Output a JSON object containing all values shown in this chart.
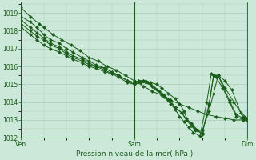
{
  "background_color": "#cce8d8",
  "grid_color": "#aaccbb",
  "line_color": "#1a5c1a",
  "marker_color": "#1a5c1a",
  "title": "Pression niveau de la mer( hPa )",
  "ylim": [
    1012,
    1019.6
  ],
  "yticks": [
    1012,
    1013,
    1014,
    1015,
    1016,
    1017,
    1018,
    1019
  ],
  "xtick_labels": [
    "Ven",
    "Sam",
    "Dim"
  ],
  "xtick_positions": [
    0,
    0.5,
    1.0
  ],
  "series": [
    {
      "x": [
        0.0,
        0.04,
        0.08,
        0.1,
        0.14,
        0.18,
        0.22,
        0.26,
        0.3,
        0.34,
        0.38,
        0.42,
        0.46,
        0.5,
        0.54,
        0.58,
        0.62,
        0.66,
        0.7,
        0.74,
        0.78,
        0.82,
        0.86,
        0.9,
        0.94,
        0.98,
        1.0
      ],
      "y": [
        1019.3,
        1018.8,
        1018.4,
        1018.2,
        1017.8,
        1017.5,
        1017.2,
        1016.9,
        1016.5,
        1016.3,
        1016.0,
        1015.8,
        1015.5,
        1015.2,
        1014.9,
        1014.6,
        1014.4,
        1014.1,
        1013.9,
        1013.7,
        1013.5,
        1013.3,
        1013.2,
        1013.1,
        1013.0,
        1013.0,
        1013.0
      ]
    },
    {
      "x": [
        0.0,
        0.04,
        0.07,
        0.1,
        0.13,
        0.17,
        0.2,
        0.23,
        0.27,
        0.3,
        0.33,
        0.37,
        0.4,
        0.43,
        0.47,
        0.5,
        0.53,
        0.55,
        0.57,
        0.6,
        0.62,
        0.65,
        0.68,
        0.7,
        0.72,
        0.73,
        0.75,
        0.77,
        0.8,
        0.83,
        0.85,
        0.87,
        0.9,
        0.93,
        0.97,
        1.0
      ],
      "y": [
        1018.8,
        1018.5,
        1018.2,
        1017.8,
        1017.5,
        1017.3,
        1017.0,
        1016.8,
        1016.5,
        1016.3,
        1016.1,
        1015.9,
        1015.7,
        1015.5,
        1015.2,
        1015.0,
        1015.1,
        1015.2,
        1015.1,
        1015.0,
        1014.8,
        1014.5,
        1014.2,
        1013.9,
        1013.5,
        1013.1,
        1012.8,
        1012.5,
        1012.4,
        1013.5,
        1014.5,
        1015.5,
        1015.2,
        1014.7,
        1013.4,
        1013.1
      ]
    },
    {
      "x": [
        0.0,
        0.04,
        0.07,
        0.1,
        0.13,
        0.17,
        0.2,
        0.23,
        0.27,
        0.3,
        0.33,
        0.37,
        0.4,
        0.43,
        0.47,
        0.5,
        0.52,
        0.54,
        0.56,
        0.59,
        0.62,
        0.65,
        0.68,
        0.71,
        0.73,
        0.75,
        0.77,
        0.8,
        0.83,
        0.85,
        0.87,
        0.9,
        0.94,
        0.98,
        1.0
      ],
      "y": [
        1018.6,
        1018.2,
        1017.9,
        1017.6,
        1017.3,
        1017.1,
        1016.8,
        1016.6,
        1016.4,
        1016.2,
        1016.0,
        1015.9,
        1015.7,
        1015.5,
        1015.2,
        1015.1,
        1015.2,
        1015.2,
        1015.1,
        1014.8,
        1014.5,
        1014.1,
        1013.7,
        1013.4,
        1013.0,
        1012.7,
        1012.4,
        1012.3,
        1013.8,
        1015.5,
        1015.5,
        1014.8,
        1014.0,
        1013.2,
        1013.1
      ]
    },
    {
      "x": [
        0.0,
        0.04,
        0.07,
        0.1,
        0.13,
        0.17,
        0.2,
        0.23,
        0.27,
        0.3,
        0.33,
        0.37,
        0.4,
        0.43,
        0.47,
        0.5,
        0.52,
        0.54,
        0.57,
        0.6,
        0.63,
        0.66,
        0.68,
        0.71,
        0.73,
        0.76,
        0.78,
        0.8,
        0.83,
        0.85,
        0.87,
        0.89,
        0.92,
        0.95,
        0.98,
        1.0
      ],
      "y": [
        1018.4,
        1018.0,
        1017.7,
        1017.5,
        1017.2,
        1017.0,
        1016.7,
        1016.5,
        1016.3,
        1016.1,
        1016.0,
        1015.8,
        1015.6,
        1015.5,
        1015.2,
        1015.1,
        1015.2,
        1015.2,
        1015.0,
        1014.7,
        1014.4,
        1014.1,
        1013.7,
        1013.4,
        1013.0,
        1012.7,
        1012.4,
        1012.2,
        1013.9,
        1015.5,
        1015.5,
        1014.9,
        1014.1,
        1013.3,
        1013.1,
        1013.0
      ]
    },
    {
      "x": [
        0.0,
        0.04,
        0.07,
        0.1,
        0.13,
        0.17,
        0.2,
        0.23,
        0.27,
        0.3,
        0.33,
        0.37,
        0.4,
        0.43,
        0.47,
        0.5,
        0.53,
        0.55,
        0.58,
        0.61,
        0.63,
        0.66,
        0.68,
        0.7,
        0.72,
        0.74,
        0.76,
        0.79,
        0.82,
        0.84,
        0.86,
        0.89,
        0.92,
        0.95,
        0.98,
        1.0
      ],
      "y": [
        1018.2,
        1017.8,
        1017.5,
        1017.2,
        1017.0,
        1016.8,
        1016.6,
        1016.4,
        1016.2,
        1016.0,
        1015.9,
        1015.7,
        1015.6,
        1015.4,
        1015.1,
        1015.0,
        1015.1,
        1015.1,
        1014.9,
        1014.6,
        1014.3,
        1013.9,
        1013.6,
        1013.2,
        1012.9,
        1012.6,
        1012.3,
        1012.1,
        1014.0,
        1015.6,
        1015.4,
        1014.8,
        1014.0,
        1013.2,
        1013.0,
        1013.0
      ]
    }
  ]
}
